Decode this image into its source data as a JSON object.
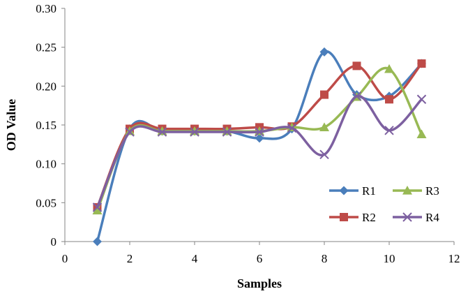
{
  "chart_data": {
    "type": "line",
    "smooth": true,
    "title": "",
    "xlabel": "Samples",
    "ylabel": "OD Value",
    "xlim": [
      0,
      12
    ],
    "ylim": [
      0,
      0.3
    ],
    "x_ticks": [
      "0",
      "2",
      "4",
      "6",
      "8",
      "10",
      "12"
    ],
    "y_ticks": [
      "0",
      "0.05",
      "0.10",
      "0.15",
      "0.20",
      "0.25",
      "0.30"
    ],
    "grid": false,
    "legend_position": "bottom-right",
    "x": [
      1,
      2,
      3,
      4,
      5,
      6,
      7,
      8,
      9,
      10,
      11
    ],
    "series": [
      {
        "name": "R1",
        "color": "#4a7ebb",
        "marker": "diamond",
        "values": [
          0.0,
          0.145,
          0.142,
          0.142,
          0.142,
          0.133,
          0.145,
          0.244,
          0.189,
          0.187,
          0.229
        ]
      },
      {
        "name": "R2",
        "color": "#be4b48",
        "marker": "square",
        "values": [
          0.044,
          0.145,
          0.145,
          0.145,
          0.145,
          0.147,
          0.148,
          0.189,
          0.226,
          0.183,
          0.229
        ]
      },
      {
        "name": "R3",
        "color": "#98b954",
        "marker": "triangle",
        "values": [
          0.04,
          0.142,
          0.142,
          0.142,
          0.142,
          0.142,
          0.147,
          0.147,
          0.186,
          0.222,
          0.138
        ]
      },
      {
        "name": "R4",
        "color": "#7d60a0",
        "marker": "x",
        "values": [
          0.044,
          0.141,
          0.141,
          0.141,
          0.141,
          0.141,
          0.146,
          0.112,
          0.187,
          0.143,
          0.183
        ]
      }
    ]
  }
}
